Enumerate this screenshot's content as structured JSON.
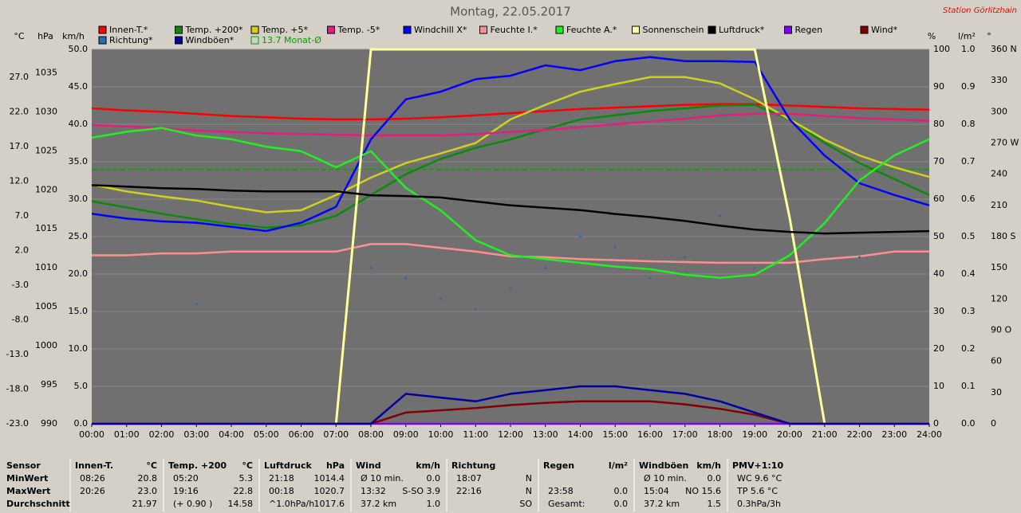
{
  "chart_data": {
    "type": "line",
    "title": "Montag, 22.05.2017",
    "station": "Station Görlitzhain",
    "x": [
      0,
      1,
      2,
      3,
      4,
      5,
      6,
      7,
      8,
      9,
      10,
      11,
      12,
      13,
      14,
      15,
      16,
      17,
      18,
      19,
      20,
      21,
      22,
      23,
      24
    ],
    "xlim": [
      0,
      24
    ],
    "xticks": [
      {
        "value": 0,
        "label": "00:00"
      },
      {
        "value": 1,
        "label": "01:00"
      },
      {
        "value": 2,
        "label": "02:00"
      },
      {
        "value": 3,
        "label": "03:00"
      },
      {
        "value": 4,
        "label": "04:00"
      },
      {
        "value": 5,
        "label": "05:00"
      },
      {
        "value": 6,
        "label": "06:00"
      },
      {
        "value": 7,
        "label": "07:00"
      },
      {
        "value": 8,
        "label": "08:00"
      },
      {
        "value": 9,
        "label": "09:00"
      },
      {
        "value": 10,
        "label": "10:00"
      },
      {
        "value": 11,
        "label": "11:00"
      },
      {
        "value": 12,
        "label": "12:00"
      },
      {
        "value": 13,
        "label": "13:00"
      },
      {
        "value": 14,
        "label": "14:00"
      },
      {
        "value": 15,
        "label": "15:00"
      },
      {
        "value": 16,
        "label": "16:00"
      },
      {
        "value": 17,
        "label": "17:00"
      },
      {
        "value": 18,
        "label": "18:00"
      },
      {
        "value": 19,
        "label": "19:00"
      },
      {
        "value": 20,
        "label": "20:00"
      },
      {
        "value": 21,
        "label": "21:00"
      },
      {
        "value": 22,
        "label": "22:00"
      },
      {
        "value": 23,
        "label": "23:00"
      },
      {
        "value": 24,
        "label": "24:00"
      }
    ],
    "grid": true,
    "axes": [
      {
        "label": "°C",
        "ylim": [
          -23,
          31
        ],
        "yticks": [
          {
            "value": -23,
            "label": "-23.0"
          },
          {
            "value": -18,
            "label": "-18.0"
          },
          {
            "value": -13,
            "label": "-13.0"
          },
          {
            "value": -8,
            "label": "-8.0"
          },
          {
            "value": -3,
            "label": "-3.0"
          },
          {
            "value": 2,
            "label": "2.0"
          },
          {
            "value": 7,
            "label": "7.0"
          },
          {
            "value": 12,
            "label": "12.0"
          },
          {
            "value": 17,
            "label": "17.0"
          },
          {
            "value": 22,
            "label": "22.0"
          },
          {
            "value": 27,
            "label": "27.0"
          }
        ]
      },
      {
        "label": "hPa",
        "ylim": [
          990,
          1038
        ],
        "yticks": [
          990,
          995,
          1000,
          1005,
          1010,
          1015,
          1020,
          1025,
          1030,
          1035
        ]
      },
      {
        "label": "km/h",
        "ylim": [
          0,
          50
        ],
        "yticks": [
          {
            "value": 0,
            "label": "0.0"
          },
          {
            "value": 5,
            "label": "5.0"
          },
          {
            "value": 10,
            "label": "10.0"
          },
          {
            "value": 15,
            "label": "15.0"
          },
          {
            "value": 20,
            "label": "20.0"
          },
          {
            "value": 25,
            "label": "25.0"
          },
          {
            "value": 30,
            "label": "30.0"
          },
          {
            "value": 35,
            "label": "35.0"
          },
          {
            "value": 40,
            "label": "40.0"
          },
          {
            "value": 45,
            "label": "45.0"
          },
          {
            "value": 50,
            "label": "50.0"
          }
        ]
      },
      {
        "label": "%",
        "ylim": [
          0,
          100
        ],
        "yticks": [
          0,
          10,
          20,
          30,
          40,
          50,
          60,
          70,
          80,
          90,
          100
        ]
      },
      {
        "label": "l/m²",
        "ylim": [
          0,
          1
        ],
        "yticks": [
          {
            "value": 0,
            "label": "0.0"
          },
          0.1,
          0.2,
          0.3,
          0.4,
          0.5,
          0.6,
          0.7,
          0.8,
          0.9,
          {
            "value": 1,
            "label": "1.0"
          }
        ]
      },
      {
        "label": "°",
        "ylim": [
          0,
          360
        ],
        "yticks": [
          0,
          30,
          60,
          {
            "value": 90,
            "label": "90 O"
          },
          120,
          150,
          {
            "value": 180,
            "label": "180 S"
          },
          210,
          240,
          {
            "value": 270,
            "label": "270 W"
          },
          300,
          330,
          {
            "value": 360,
            "label": "360 N"
          }
        ]
      }
    ],
    "series": [
      {
        "name": "Innen-T.*",
        "color": "#ff0000",
        "axis": 0,
        "style": "line",
        "values": [
          22.5,
          22.2,
          22.0,
          21.7,
          21.4,
          21.2,
          21.0,
          20.9,
          20.9,
          21.0,
          21.2,
          21.5,
          21.8,
          22.1,
          22.4,
          22.6,
          22.8,
          23.0,
          23.1,
          23.1,
          22.9,
          22.7,
          22.5,
          22.4,
          22.3
        ]
      },
      {
        "name": "Temp. +200*",
        "color": "#0a8a0a",
        "axis": 0,
        "style": "line",
        "values": [
          9.1,
          8.2,
          7.3,
          6.5,
          5.8,
          5.3,
          5.6,
          7.0,
          10.0,
          13.0,
          15.2,
          16.8,
          18.0,
          19.5,
          20.9,
          21.5,
          22.1,
          22.5,
          22.9,
          23.0,
          20.9,
          17.5,
          14.6,
          12.3,
          10.0
        ]
      },
      {
        "name": "Temp. +5*",
        "color": "#d0d020",
        "axis": 0,
        "style": "line",
        "values": [
          11.5,
          10.5,
          9.8,
          9.2,
          8.3,
          7.5,
          7.8,
          10.0,
          12.5,
          14.6,
          16.0,
          17.5,
          20.9,
          23.0,
          24.9,
          26.0,
          27.0,
          27.0,
          26.1,
          23.8,
          20.9,
          18.0,
          15.7,
          14.0,
          12.6
        ]
      },
      {
        "name": "Temp. -5*",
        "color": "#e0207f",
        "axis": 0,
        "style": "line",
        "values": [
          20.1,
          19.9,
          19.6,
          19.3,
          19.1,
          18.9,
          18.8,
          18.7,
          18.6,
          18.6,
          18.6,
          18.8,
          19.1,
          19.4,
          19.8,
          20.2,
          20.6,
          21.0,
          21.5,
          21.7,
          21.7,
          21.4,
          21.1,
          20.9,
          20.7
        ]
      },
      {
        "name": "Windchill X*",
        "color": "#0000ff",
        "axis": 0,
        "style": "line",
        "values": [
          7.3,
          6.6,
          6.2,
          6.0,
          5.4,
          4.8,
          6.0,
          8.3,
          18.0,
          23.8,
          24.9,
          26.7,
          27.2,
          28.7,
          28.0,
          29.3,
          29.9,
          29.3,
          29.3,
          29.2,
          20.9,
          15.7,
          11.7,
          10.0,
          8.5
        ]
      },
      {
        "name": "Feuchte I.*",
        "color": "#ff9090",
        "axis": 3,
        "style": "line",
        "values": [
          45,
          45,
          45.5,
          45.5,
          46,
          46,
          46,
          46,
          48,
          48,
          47,
          46,
          44.7,
          44.5,
          44,
          43.7,
          43.4,
          43.2,
          43,
          43,
          43,
          44,
          44.7,
          46,
          46
        ]
      },
      {
        "name": "Feuchte A.*",
        "color": "#20f020",
        "axis": 3,
        "style": "line",
        "values": [
          76.4,
          78,
          79,
          77,
          76,
          74,
          72.8,
          68.5,
          72.8,
          63,
          57,
          49,
          45,
          44,
          43,
          42,
          41.3,
          39.8,
          39,
          39.8,
          45,
          53.6,
          65,
          71.7,
          76
        ]
      },
      {
        "name": "Sonnenschein",
        "color": "#ffff99",
        "axis": 3,
        "style": "line",
        "values": [
          0,
          0,
          0,
          0,
          0,
          0,
          0,
          0,
          100,
          100,
          100,
          100,
          100,
          100,
          100,
          100,
          100,
          100,
          100,
          100,
          55,
          0,
          0,
          0,
          0
        ]
      },
      {
        "name": "Luftdruck*",
        "color": "#000000",
        "axis": 1,
        "style": "line",
        "values": [
          1020.6,
          1020.4,
          1020.2,
          1020.1,
          1019.9,
          1019.8,
          1019.8,
          1019.8,
          1019.3,
          1019.2,
          1019.0,
          1018.5,
          1018.0,
          1017.7,
          1017.4,
          1016.9,
          1016.5,
          1016.0,
          1015.4,
          1014.9,
          1014.6,
          1014.4,
          1014.5,
          1014.6,
          1014.7
        ]
      },
      {
        "name": "Regen",
        "color": "#8000ff",
        "axis": 4,
        "style": "line",
        "values": [
          0,
          0,
          0,
          0,
          0,
          0,
          0,
          0,
          0,
          0,
          0,
          0,
          0,
          0,
          0,
          0,
          0,
          0,
          0,
          0,
          0,
          0,
          0,
          0,
          0
        ]
      },
      {
        "name": "Wind*",
        "color": "#800000",
        "axis": 2,
        "style": "line",
        "values": [
          0,
          0,
          0,
          0,
          0,
          0,
          0,
          0,
          0,
          1.5,
          1.8,
          2.1,
          2.5,
          2.8,
          3.0,
          3.0,
          3.0,
          2.6,
          2.0,
          1.2,
          0,
          0,
          0,
          0,
          0
        ]
      },
      {
        "name": "Richtung*",
        "color": "#2a6cb0",
        "axis": 5,
        "style": "dots",
        "values": [
          null,
          null,
          null,
          115,
          null,
          null,
          null,
          null,
          150,
          140,
          120,
          110,
          130,
          150,
          180,
          170,
          140,
          160,
          200,
          150,
          null,
          null,
          160,
          null,
          null
        ]
      },
      {
        "name": "Windböen*",
        "color": "#0000a0",
        "axis": 2,
        "style": "line",
        "values": [
          0,
          0,
          0,
          0,
          0,
          0,
          0,
          0,
          0,
          4.0,
          3.5,
          3.0,
          4.0,
          4.5,
          5.0,
          5.0,
          4.5,
          4.0,
          3.0,
          1.5,
          0,
          0,
          0,
          0,
          0
        ]
      }
    ],
    "reference": {
      "name": "13.7 Monat-Ø",
      "value": 13.7,
      "axis": 0,
      "color": "#00a000"
    },
    "summary": {
      "row_labels": [
        "Sensor",
        "MinWert",
        "MaxWert",
        "Durchschnitt"
      ],
      "columns": [
        {
          "title": "Innen-T.",
          "unit": "°C",
          "rows": [
            {
              "left": "08:26",
              "right": "20.8"
            },
            {
              "left": "20:26",
              "right": "23.0"
            },
            {
              "right": "21.97"
            }
          ]
        },
        {
          "title": "Temp. +200",
          "unit": "°C",
          "rows": [
            {
              "left": "05:20",
              "right": "5.3"
            },
            {
              "left": "19:16",
              "right": "22.8"
            },
            {
              "left": "(+ 0.90 )",
              "right": "14.58"
            }
          ]
        },
        {
          "title": "Luftdruck",
          "unit": "hPa",
          "rows": [
            {
              "left": "21:18",
              "right": "1014.4"
            },
            {
              "left": "00:18",
              "right": "1020.7"
            },
            {
              "left": "^1.0hPa/h",
              "right": "1017.6"
            }
          ]
        },
        {
          "title": "Wind",
          "unit": "km/h",
          "rows": [
            {
              "left": "Ø 10 min.",
              "right": "0.0"
            },
            {
              "left": "13:32",
              "right": "S-SO 3.9"
            },
            {
              "left": "37.2 km",
              "right": "1.0"
            }
          ]
        },
        {
          "title": "Richtung",
          "rows": [
            {
              "left": "18:07",
              "right": "N"
            },
            {
              "left": "22:16",
              "right": "N"
            },
            {
              "right": "SO"
            }
          ]
        },
        {
          "title": "Regen",
          "unit": "l/m²",
          "rows": [
            null,
            {
              "left": "23:58",
              "right": "0.0"
            },
            {
              "left": "Gesamt:",
              "right": "0.0"
            }
          ]
        },
        {
          "title": "Windböen",
          "unit": "km/h",
          "rows": [
            {
              "left": "Ø 10 min.",
              "right": "0.0"
            },
            {
              "left": "15:04",
              "right": "NO 15.6"
            },
            {
              "left": "37.2 km",
              "right": "1.5"
            }
          ]
        },
        {
          "title": "PMV+1:10",
          "rows": [
            {
              "left": "WC 9.6 °C"
            },
            {
              "left": "TP 5.6 °C"
            },
            {
              "left": "0.3hPa/3h"
            }
          ]
        }
      ]
    }
  }
}
